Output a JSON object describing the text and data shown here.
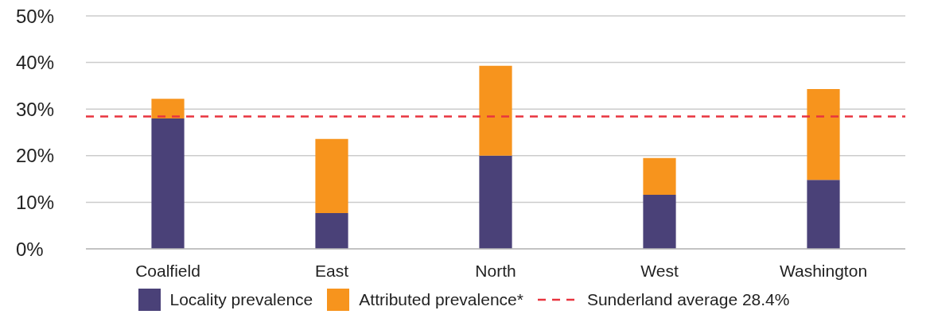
{
  "chart_data": {
    "type": "bar",
    "stacked": true,
    "categories": [
      "Coalfield",
      "East",
      "North",
      "West",
      "Washington"
    ],
    "series": [
      {
        "name": "Locality prevalence",
        "color": "#4a4178",
        "values": [
          28,
          7.7,
          20,
          11.6,
          14.8
        ]
      },
      {
        "name": "Attributed prevalence*",
        "color": "#f7941d",
        "values": [
          4.2,
          15.9,
          19.3,
          7.9,
          19.5
        ]
      }
    ],
    "ylim": [
      0,
      50
    ],
    "yticks": [
      {
        "value": 0,
        "label": "0%"
      },
      {
        "value": 10,
        "label": "10%"
      },
      {
        "value": 20,
        "label": "20%"
      },
      {
        "value": 30,
        "label": "30%"
      },
      {
        "value": 40,
        "label": "40%"
      },
      {
        "value": 50,
        "label": "50%"
      }
    ],
    "ref_lines": [
      {
        "axis": "y",
        "value": 28.4,
        "label": "Sunderland average 28.4%",
        "color": "#e8343f",
        "line_style": "dashed"
      }
    ],
    "grid": "y",
    "legend": "bottom"
  }
}
